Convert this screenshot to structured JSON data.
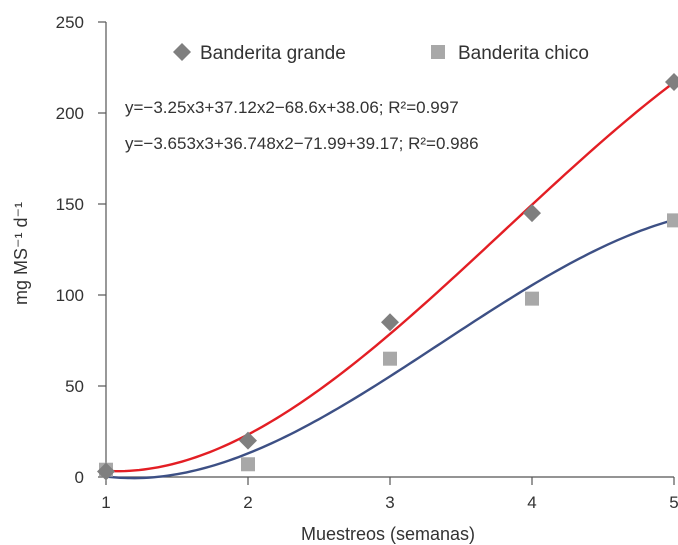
{
  "chart_data": {
    "type": "scatter",
    "title": "",
    "xlabel": "Muestreos (semanas)",
    "ylabel": "mg MS⁻¹ d⁻¹",
    "xlim": [
      1,
      5
    ],
    "ylim": [
      0,
      250
    ],
    "xticks": [
      1,
      2,
      3,
      4,
      5
    ],
    "yticks": [
      0,
      50,
      100,
      150,
      200,
      250
    ],
    "grid": false,
    "legend_position": "top",
    "series": [
      {
        "name": "Banderita grande",
        "marker": "diamond",
        "marker_color": "#7f7f7f",
        "trendline_color": "#e31e24",
        "x": [
          1,
          2,
          3,
          4,
          5
        ],
        "y": [
          3,
          20,
          85,
          145,
          217
        ]
      },
      {
        "name": "Banderita chico",
        "marker": "square",
        "marker_color": "#a8a8a8",
        "trendline_color": "#3d5085",
        "x": [
          1,
          2,
          3,
          4,
          5
        ],
        "y": [
          4,
          7,
          65,
          98,
          141
        ]
      }
    ],
    "trendlines": [
      {
        "series": 0,
        "coefficients": [
          -3.25,
          37.12,
          -68.6,
          38.06
        ]
      },
      {
        "series": 1,
        "coefficients": [
          -3.653,
          36.748,
          -71.99,
          39.17
        ]
      }
    ],
    "annotations": [
      "y=−3.25x3+37.12x2−68.6x+38.06; R²=0.997",
      "y=−3.653x3+36.748x2−71.99+39.17; R²=0.986"
    ]
  }
}
